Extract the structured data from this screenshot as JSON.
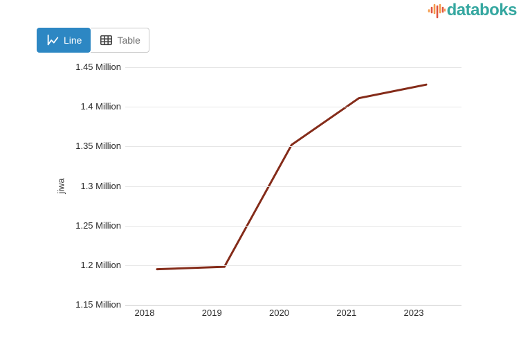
{
  "header": {
    "logo": {
      "text": "databoks",
      "text_color": "#35a7a0",
      "icon_orange": "#f59b4b",
      "icon_red": "#e0543f"
    }
  },
  "toolbar": {
    "line_label": "Line",
    "table_label": "Table",
    "active_color": "#2d87c3"
  },
  "chart_data": {
    "type": "line",
    "categories": [
      "2018",
      "2019",
      "2020",
      "2021",
      "2023"
    ],
    "series": [
      {
        "name": "jiwa",
        "values": [
          1195000,
          1198000,
          1352000,
          1411000,
          1428000
        ]
      }
    ],
    "title": "",
    "xlabel": "",
    "ylabel": "jiwa",
    "ylim": [
      1150000,
      1450000
    ],
    "y_ticks": [
      {
        "value": 1150000,
        "label": "1.15 Million"
      },
      {
        "value": 1200000,
        "label": "1.2 Million"
      },
      {
        "value": 1250000,
        "label": "1.25 Million"
      },
      {
        "value": 1300000,
        "label": "1.3 Million"
      },
      {
        "value": 1350000,
        "label": "1.35 Million"
      },
      {
        "value": 1400000,
        "label": "1.4 Million"
      },
      {
        "value": 1450000,
        "label": "1.45 Million"
      }
    ],
    "line_color": "#842b19",
    "grid": true,
    "legend": false
  }
}
